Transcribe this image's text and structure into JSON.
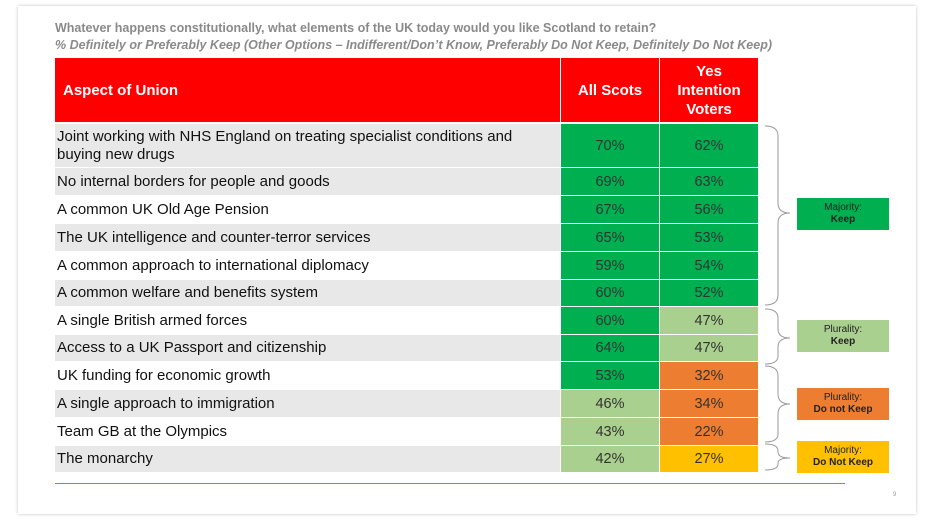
{
  "title": "Whatever happens constitutionally, what elements of the UK today would you like Scotland to retain?",
  "subtitle": "% Definitely or Preferably Keep (Other Options – Indifferent/Don’t Know, Preferably Do Not Keep, Definitely Do Not Keep)",
  "page_number": "9",
  "colors": {
    "header": "#ff0000",
    "majority_keep": "#00b050",
    "plurality_keep": "#a9d08e",
    "plurality_do_not_keep": "#ed7d31",
    "majority_do_not_keep": "#ffc000"
  },
  "chart_data": {
    "type": "table",
    "columns": [
      "Aspect of Union",
      "All Scots",
      "Yes Intention Voters"
    ],
    "yes_header_lines": [
      "Yes",
      "Intention",
      "Voters"
    ],
    "rows": [
      {
        "aspect": "Joint working with NHS England on treating specialist conditions and buying new drugs",
        "all_scots": "70%",
        "yes_voters": "62%",
        "all_cat": "majority_keep",
        "yes_cat": "majority_keep"
      },
      {
        "aspect": "No internal borders for people and goods",
        "all_scots": "69%",
        "yes_voters": "63%",
        "all_cat": "majority_keep",
        "yes_cat": "majority_keep"
      },
      {
        "aspect": "A common UK Old Age Pension",
        "all_scots": "67%",
        "yes_voters": "56%",
        "all_cat": "majority_keep",
        "yes_cat": "majority_keep"
      },
      {
        "aspect": "The UK intelligence and counter-terror services",
        "all_scots": "65%",
        "yes_voters": "53%",
        "all_cat": "majority_keep",
        "yes_cat": "majority_keep"
      },
      {
        "aspect": "A common approach to international diplomacy",
        "all_scots": "59%",
        "yes_voters": "54%",
        "all_cat": "majority_keep",
        "yes_cat": "majority_keep"
      },
      {
        "aspect": "A common welfare and benefits system",
        "all_scots": "60%",
        "yes_voters": "52%",
        "all_cat": "majority_keep",
        "yes_cat": "majority_keep"
      },
      {
        "aspect": "A single British armed forces",
        "all_scots": "60%",
        "yes_voters": "47%",
        "all_cat": "majority_keep",
        "yes_cat": "plurality_keep"
      },
      {
        "aspect": "Access to a UK Passport and citizenship",
        "all_scots": "64%",
        "yes_voters": "47%",
        "all_cat": "majority_keep",
        "yes_cat": "plurality_keep"
      },
      {
        "aspect": "UK funding for economic growth",
        "all_scots": "53%",
        "yes_voters": "32%",
        "all_cat": "majority_keep",
        "yes_cat": "plurality_do_not_keep"
      },
      {
        "aspect": "A single approach to immigration",
        "all_scots": "46%",
        "yes_voters": "34%",
        "all_cat": "plurality_keep",
        "yes_cat": "plurality_do_not_keep"
      },
      {
        "aspect": "Team GB at the Olympics",
        "all_scots": "43%",
        "yes_voters": "22%",
        "all_cat": "plurality_keep",
        "yes_cat": "plurality_do_not_keep"
      },
      {
        "aspect": "The monarchy",
        "all_scots": "42%",
        "yes_voters": "27%",
        "all_cat": "plurality_keep",
        "yes_cat": "majority_do_not_keep"
      }
    ]
  },
  "legend": [
    {
      "line1": "Majority:",
      "line2": "Keep",
      "category": "majority_keep"
    },
    {
      "line1": "Plurality:",
      "line2": "Keep",
      "category": "plurality_keep"
    },
    {
      "line1": "Plurality:",
      "line2": "Do not Keep",
      "category": "plurality_do_not_keep"
    },
    {
      "line1": "Majority:",
      "line2": "Do Not Keep",
      "category": "majority_do_not_keep"
    }
  ]
}
